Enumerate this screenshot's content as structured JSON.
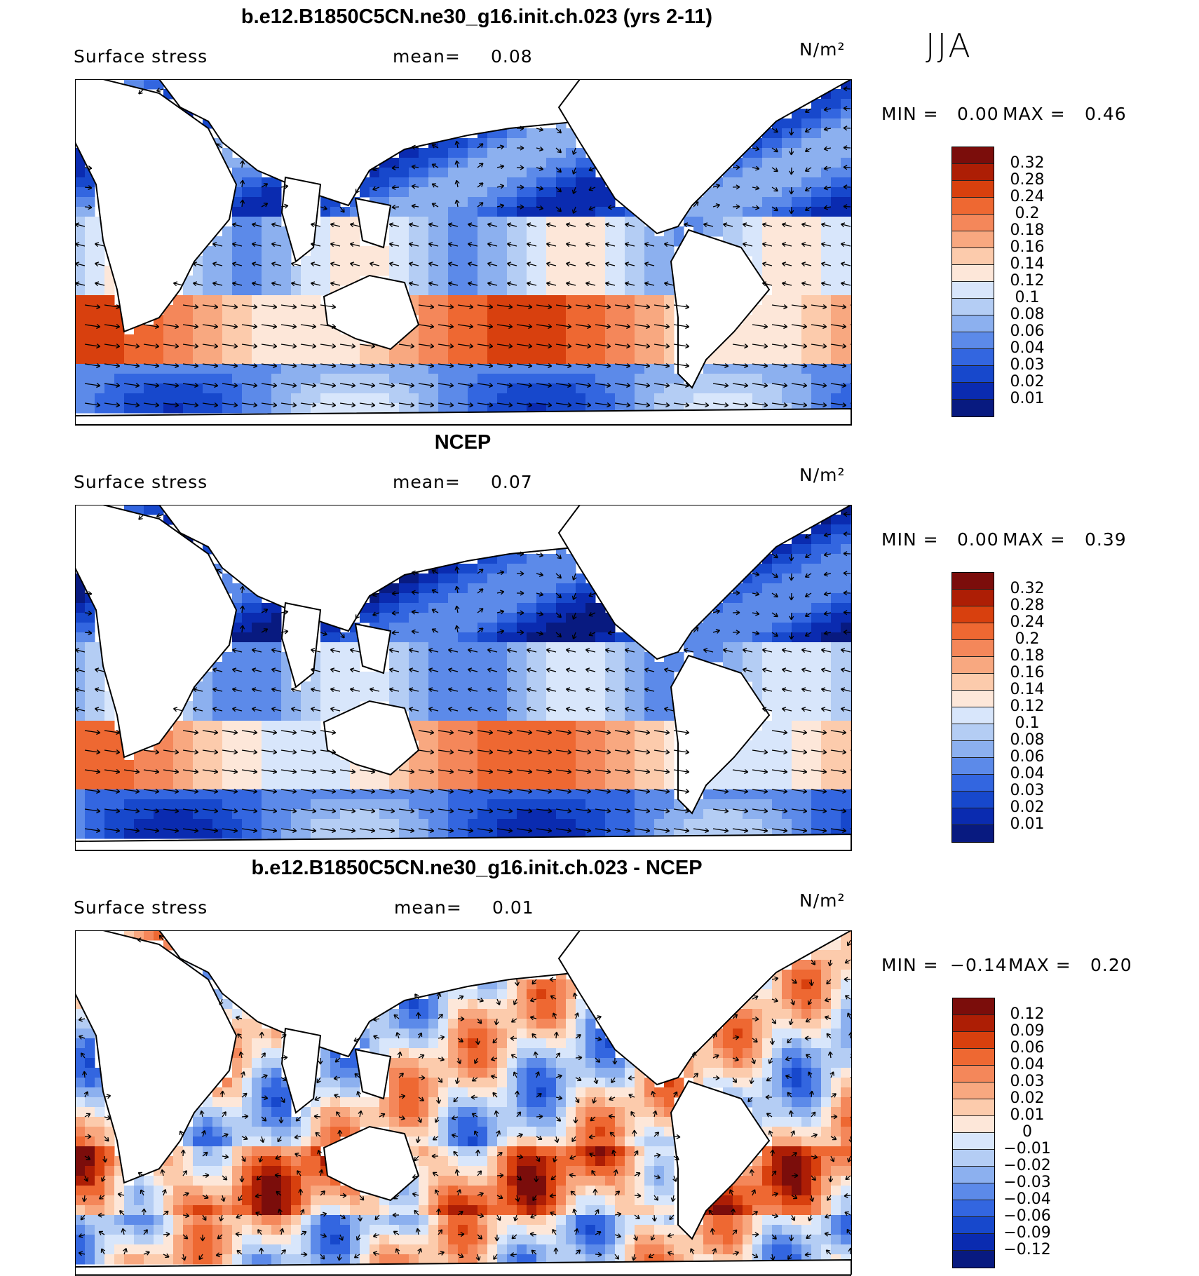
{
  "season": "JJA",
  "units_label": "N/m²",
  "variable_label": "Surface stress",
  "mean_label": "mean=",
  "min_label": "MIN =",
  "max_label": "MAX =",
  "chart_data": [
    {
      "type": "heatmap",
      "title": "b.e12.B1850C5CN.ne30_g16.init.ch.023 (yrs 2-11)",
      "mean": "0.08",
      "min": "0.00",
      "max": "0.46",
      "colorbar_levels": [
        "0.32",
        "0.28",
        "0.24",
        "0.2",
        "0.18",
        "0.16",
        "0.14",
        "0.12",
        "0.1",
        "0.08",
        "0.06",
        "0.04",
        "0.03",
        "0.02",
        "0.01"
      ],
      "colorbar_colors": [
        "#7b0d0b",
        "#ad1e05",
        "#d8400e",
        "#ee6832",
        "#f4875a",
        "#f8a880",
        "#fccbac",
        "#fde7d9",
        "#d8e6fb",
        "#b4cdf4",
        "#8cb0ef",
        "#5c8ae9",
        "#3366e0",
        "#1748cc",
        "#0a2bb0",
        "#081a80"
      ]
    },
    {
      "type": "heatmap",
      "title": "NCEP",
      "mean": "0.07",
      "min": "0.00",
      "max": "0.39",
      "colorbar_levels": [
        "0.32",
        "0.28",
        "0.24",
        "0.2",
        "0.18",
        "0.16",
        "0.14",
        "0.12",
        "0.1",
        "0.08",
        "0.06",
        "0.04",
        "0.03",
        "0.02",
        "0.01"
      ],
      "colorbar_colors": [
        "#7b0d0b",
        "#ad1e05",
        "#d8400e",
        "#ee6832",
        "#f4875a",
        "#f8a880",
        "#fccbac",
        "#fde7d9",
        "#d8e6fb",
        "#b4cdf4",
        "#8cb0ef",
        "#5c8ae9",
        "#3366e0",
        "#1748cc",
        "#0a2bb0",
        "#081a80"
      ]
    },
    {
      "type": "heatmap",
      "title": "b.e12.B1850C5CN.ne30_g16.init.ch.023 - NCEP",
      "mean": "0.01",
      "min": "−0.14",
      "max": "0.20",
      "colorbar_levels": [
        "0.12",
        "0.09",
        "0.06",
        "0.04",
        "0.03",
        "0.02",
        "0.01",
        "0",
        "−0.01",
        "−0.02",
        "−0.03",
        "−0.04",
        "−0.06",
        "−0.09",
        "−0.12"
      ],
      "colorbar_colors": [
        "#7b0d0b",
        "#ad1e05",
        "#d8400e",
        "#ee6832",
        "#f4875a",
        "#f8a880",
        "#fccbac",
        "#fde7d9",
        "#d8e6fb",
        "#b4cdf4",
        "#8cb0ef",
        "#5c8ae9",
        "#3366e0",
        "#1748cc",
        "#0a2bb0",
        "#081a80"
      ]
    }
  ]
}
